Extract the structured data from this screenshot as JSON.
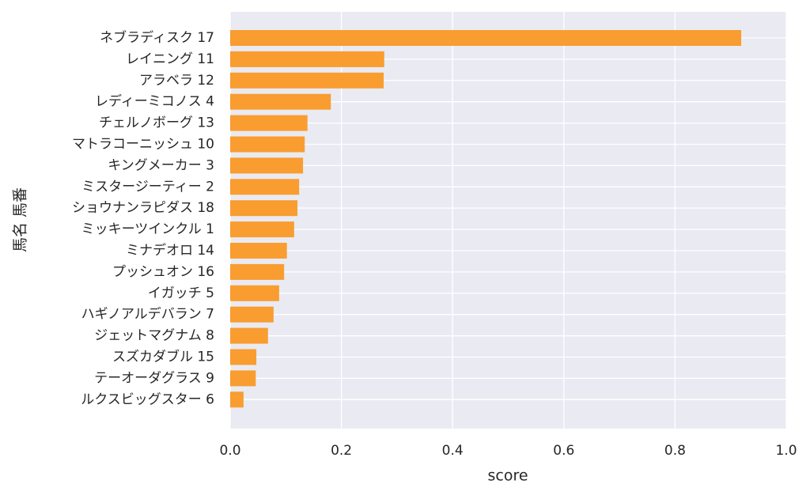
{
  "chart_data": {
    "type": "barh",
    "y_label": "馬名 馬番",
    "x_label": "score",
    "categories": [
      "ネブラディスク 17",
      "レイニング 11",
      "アラベラ 12",
      "レディーミコノス 4",
      "チェルノボーグ 13",
      "マトラコーニッシュ 10",
      "キングメーカー 3",
      "ミスタージーティー 2",
      "ショウナンラピダス 18",
      "ミッキーツインクル 1",
      "ミナデオロ 14",
      "プッシュオン 16",
      "イガッチ 5",
      "ハギノアルデバラン 7",
      "ジェットマグナム 8",
      "スズカダブル 15",
      "テーオーダグラス 9",
      "ルクスビッグスター 6"
    ],
    "values": [
      0.919,
      0.277,
      0.276,
      0.181,
      0.139,
      0.134,
      0.131,
      0.124,
      0.121,
      0.115,
      0.102,
      0.097,
      0.088,
      0.078,
      0.068,
      0.047,
      0.046,
      0.024
    ],
    "color": "#f99d31",
    "xlim": [
      0,
      1
    ],
    "xticks": [
      {
        "value": 0,
        "label": "0.0"
      },
      0.2,
      0.4,
      0.6,
      0.8,
      {
        "value": 1,
        "label": "1.0"
      }
    ],
    "grid": true
  }
}
